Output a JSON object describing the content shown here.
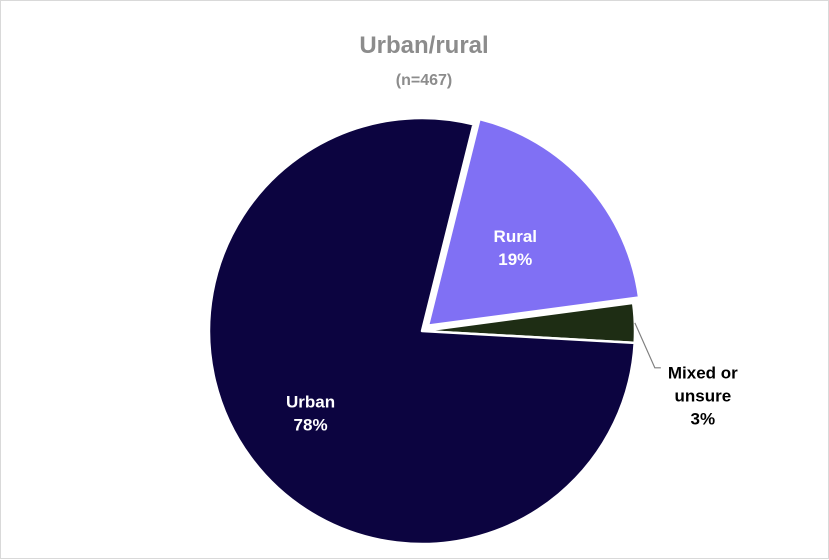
{
  "chart_data": {
    "type": "pie",
    "title": "Urban/rural",
    "subtitle": "(n=467)",
    "categories": [
      "Rural",
      "Mixed or unsure",
      "Urban"
    ],
    "values": [
      19,
      3,
      78
    ],
    "value_labels": [
      "19%",
      "3%",
      "78%"
    ],
    "label_lines": [
      [
        "Rural"
      ],
      [
        "Mixed or",
        "unsure"
      ],
      [
        "Urban"
      ]
    ],
    "colors": [
      "#8070f4",
      "#1e2d14",
      "#0c0440"
    ],
    "label_colors": [
      "#ffffff",
      "#000000",
      "#ffffff"
    ],
    "label_placement": [
      "inside",
      "outside",
      "inside"
    ],
    "exploded": [
      "Rural"
    ],
    "legend": "none",
    "border_color": "#d9d9d9"
  }
}
